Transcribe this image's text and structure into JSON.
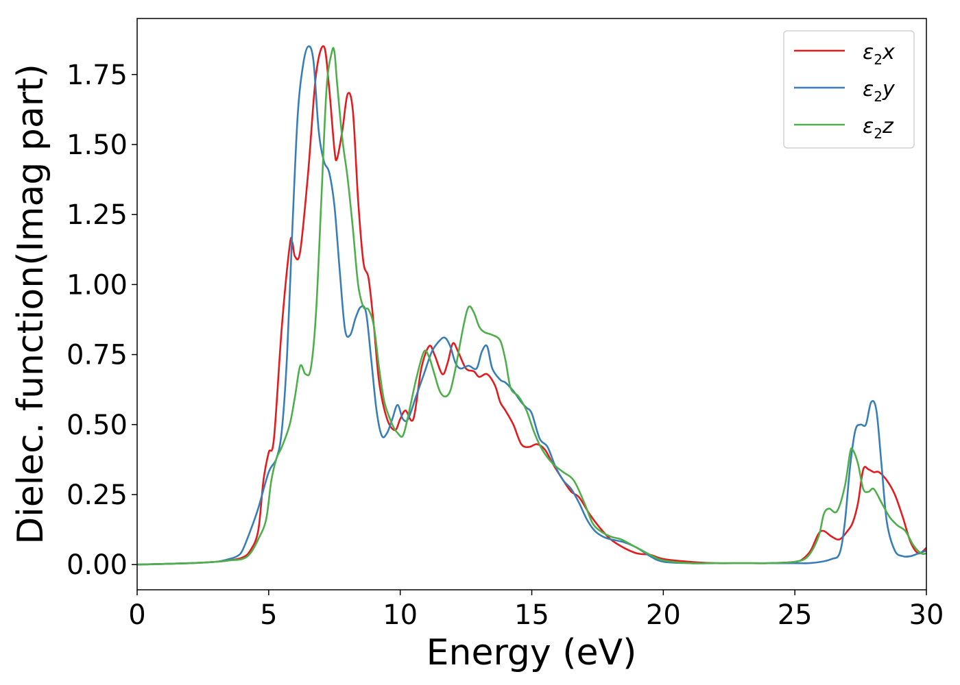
{
  "chart_data": {
    "type": "line",
    "title": "",
    "xlabel": "Energy (eV)",
    "ylabel": "Dielec. function(Imag part)",
    "xlim": [
      0,
      30
    ],
    "ylim": [
      -0.09,
      1.95
    ],
    "xticks": [
      0,
      5,
      10,
      15,
      20,
      25,
      30
    ],
    "xtick_labels": [
      "0",
      "5",
      "10",
      "15",
      "20",
      "25",
      "30"
    ],
    "yticks": [
      0.0,
      0.25,
      0.5,
      0.75,
      1.0,
      1.25,
      1.5,
      1.75
    ],
    "ytick_labels": [
      "0.00",
      "0.25",
      "0.50",
      "0.75",
      "1.00",
      "1.25",
      "1.50",
      "1.75"
    ],
    "grid": false,
    "legend_position": "top-right",
    "series": [
      {
        "name": "ε₂x",
        "legend_base": "ε",
        "legend_sub": "2",
        "legend_suffix": "x",
        "color": "#e41a1c",
        "x": [
          0,
          2,
          3,
          3.5,
          4,
          4.3,
          4.6,
          4.8,
          5.0,
          5.2,
          5.5,
          5.8,
          5.9,
          6.0,
          6.2,
          6.5,
          6.8,
          7.1,
          7.3,
          7.5,
          7.6,
          7.8,
          8.0,
          8.2,
          8.4,
          8.6,
          8.8,
          9.0,
          9.2,
          9.5,
          9.8,
          10.0,
          10.2,
          10.5,
          10.8,
          11.1,
          11.3,
          11.6,
          11.8,
          12.0,
          12.2,
          12.5,
          12.8,
          13.0,
          13.3,
          13.6,
          13.8,
          14.0,
          14.3,
          14.6,
          14.9,
          15.2,
          15.5,
          15.8,
          16.2,
          16.5,
          16.8,
          17.2,
          17.6,
          18.0,
          18.5,
          19.0,
          19.5,
          20.0,
          21.0,
          22.0,
          23.0,
          24.0,
          25.0,
          25.3,
          25.6,
          25.9,
          26.1,
          26.4,
          26.7,
          27.0,
          27.2,
          27.4,
          27.6,
          27.8,
          28.0,
          28.2,
          28.5,
          28.8,
          29.1,
          29.4,
          29.7,
          30.0
        ],
        "y": [
          0.0,
          0.005,
          0.01,
          0.015,
          0.025,
          0.05,
          0.12,
          0.3,
          0.4,
          0.45,
          0.85,
          1.14,
          1.15,
          1.1,
          1.12,
          1.4,
          1.75,
          1.85,
          1.7,
          1.48,
          1.45,
          1.55,
          1.68,
          1.62,
          1.3,
          1.08,
          1.02,
          0.85,
          0.65,
          0.52,
          0.48,
          0.52,
          0.55,
          0.52,
          0.7,
          0.78,
          0.75,
          0.68,
          0.72,
          0.79,
          0.76,
          0.7,
          0.69,
          0.67,
          0.68,
          0.64,
          0.58,
          0.55,
          0.5,
          0.43,
          0.42,
          0.43,
          0.41,
          0.36,
          0.3,
          0.26,
          0.24,
          0.18,
          0.13,
          0.09,
          0.06,
          0.04,
          0.035,
          0.02,
          0.01,
          0.005,
          0.005,
          0.005,
          0.01,
          0.02,
          0.05,
          0.11,
          0.12,
          0.1,
          0.09,
          0.12,
          0.15,
          0.22,
          0.34,
          0.34,
          0.33,
          0.33,
          0.3,
          0.25,
          0.17,
          0.08,
          0.04,
          0.06
        ]
      },
      {
        "name": "ε₂y",
        "legend_base": "ε",
        "legend_sub": "2",
        "legend_suffix": "y",
        "color": "#377eb8",
        "x": [
          0,
          2,
          3,
          3.5,
          3.8,
          4.0,
          4.3,
          4.6,
          5.0,
          5.3,
          5.5,
          5.7,
          5.9,
          6.1,
          6.3,
          6.5,
          6.7,
          6.9,
          7.1,
          7.3,
          7.5,
          7.7,
          7.9,
          8.1,
          8.3,
          8.5,
          8.7,
          8.9,
          9.1,
          9.3,
          9.5,
          9.7,
          9.9,
          10.1,
          10.3,
          10.6,
          10.9,
          11.2,
          11.5,
          11.7,
          11.9,
          12.1,
          12.3,
          12.6,
          12.9,
          13.1,
          13.3,
          13.5,
          13.8,
          14.0,
          14.3,
          14.6,
          14.8,
          15.0,
          15.3,
          15.6,
          15.9,
          16.2,
          16.5,
          16.8,
          17.1,
          17.4,
          17.7,
          18.0,
          18.5,
          19.0,
          19.5,
          20.0,
          21.0,
          22.0,
          23.0,
          24.0,
          25.0,
          25.5,
          26.0,
          26.4,
          26.7,
          26.9,
          27.1,
          27.3,
          27.5,
          27.7,
          27.9,
          28.1,
          28.3,
          28.5,
          28.8,
          29.1,
          29.4,
          29.7,
          30.0
        ],
        "y": [
          0.0,
          0.005,
          0.01,
          0.02,
          0.03,
          0.05,
          0.12,
          0.2,
          0.33,
          0.38,
          0.48,
          0.75,
          1.2,
          1.6,
          1.78,
          1.85,
          1.8,
          1.55,
          1.44,
          1.4,
          1.28,
          1.05,
          0.84,
          0.82,
          0.88,
          0.92,
          0.9,
          0.73,
          0.55,
          0.46,
          0.47,
          0.52,
          0.57,
          0.52,
          0.52,
          0.6,
          0.68,
          0.76,
          0.8,
          0.81,
          0.78,
          0.72,
          0.7,
          0.71,
          0.7,
          0.76,
          0.78,
          0.7,
          0.66,
          0.65,
          0.62,
          0.58,
          0.56,
          0.54,
          0.45,
          0.42,
          0.35,
          0.3,
          0.27,
          0.22,
          0.16,
          0.12,
          0.1,
          0.09,
          0.08,
          0.06,
          0.03,
          0.01,
          0.005,
          0.005,
          0.005,
          0.005,
          0.005,
          0.005,
          0.01,
          0.02,
          0.04,
          0.15,
          0.35,
          0.48,
          0.5,
          0.5,
          0.58,
          0.55,
          0.35,
          0.15,
          0.05,
          0.03,
          0.03,
          0.04,
          0.05
        ]
      },
      {
        "name": "ε₂z",
        "legend_base": "ε",
        "legend_sub": "2",
        "legend_suffix": "z",
        "color": "#4daf4a",
        "x": [
          0,
          2,
          3,
          3.5,
          4.0,
          4.3,
          4.6,
          4.9,
          5.1,
          5.3,
          5.5,
          5.8,
          6.0,
          6.2,
          6.4,
          6.6,
          6.8,
          7.0,
          7.2,
          7.4,
          7.5,
          7.6,
          7.8,
          8.0,
          8.2,
          8.4,
          8.6,
          8.8,
          9.0,
          9.2,
          9.4,
          9.7,
          9.9,
          10.1,
          10.3,
          10.6,
          10.9,
          11.1,
          11.3,
          11.5,
          11.7,
          11.9,
          12.1,
          12.4,
          12.6,
          12.8,
          13.0,
          13.2,
          13.5,
          13.8,
          14.0,
          14.2,
          14.5,
          14.8,
          15.1,
          15.4,
          15.8,
          16.2,
          16.6,
          17.0,
          17.3,
          17.6,
          18.0,
          18.4,
          18.8,
          19.2,
          19.6,
          20.0,
          21.0,
          22.0,
          23.0,
          24.0,
          25.0,
          25.5,
          25.9,
          26.1,
          26.3,
          26.6,
          26.9,
          27.1,
          27.2,
          27.4,
          27.6,
          27.8,
          28.0,
          28.3,
          28.6,
          28.9,
          29.2,
          29.5,
          29.8,
          30.0
        ],
        "y": [
          0.0,
          0.005,
          0.01,
          0.015,
          0.02,
          0.04,
          0.09,
          0.16,
          0.3,
          0.38,
          0.42,
          0.5,
          0.6,
          0.71,
          0.68,
          0.7,
          0.9,
          1.3,
          1.7,
          1.83,
          1.83,
          1.72,
          1.52,
          1.38,
          1.2,
          1.0,
          0.92,
          0.91,
          0.85,
          0.7,
          0.58,
          0.5,
          0.47,
          0.46,
          0.53,
          0.66,
          0.76,
          0.74,
          0.68,
          0.62,
          0.6,
          0.62,
          0.7,
          0.85,
          0.92,
          0.9,
          0.85,
          0.83,
          0.82,
          0.8,
          0.73,
          0.63,
          0.6,
          0.55,
          0.47,
          0.41,
          0.36,
          0.33,
          0.3,
          0.22,
          0.15,
          0.12,
          0.1,
          0.09,
          0.07,
          0.05,
          0.03,
          0.015,
          0.005,
          0.005,
          0.005,
          0.005,
          0.01,
          0.03,
          0.1,
          0.18,
          0.2,
          0.19,
          0.28,
          0.4,
          0.41,
          0.36,
          0.27,
          0.26,
          0.27,
          0.22,
          0.17,
          0.14,
          0.12,
          0.07,
          0.04,
          0.04
        ]
      }
    ]
  }
}
